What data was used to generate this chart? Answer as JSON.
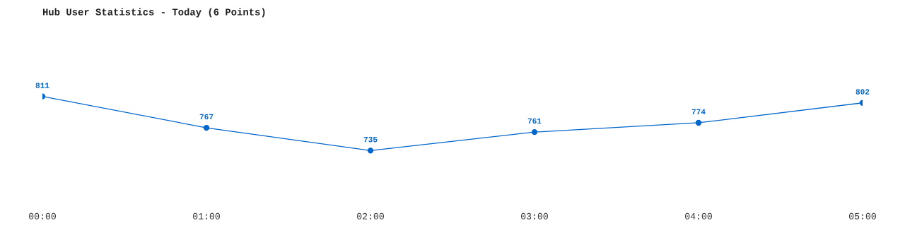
{
  "chart_data": {
    "type": "line",
    "title": "Hub User Statistics - Today (6 Points)",
    "categories": [
      "00:00",
      "01:00",
      "02:00",
      "03:00",
      "04:00",
      "05:00"
    ],
    "series": [
      {
        "color": "#0066cc",
        "values": [
          811,
          767,
          735,
          761,
          774,
          802
        ]
      }
    ],
    "data_labels": true,
    "marker": "circle",
    "line_style": "solid",
    "grid": false,
    "legend": false
  }
}
